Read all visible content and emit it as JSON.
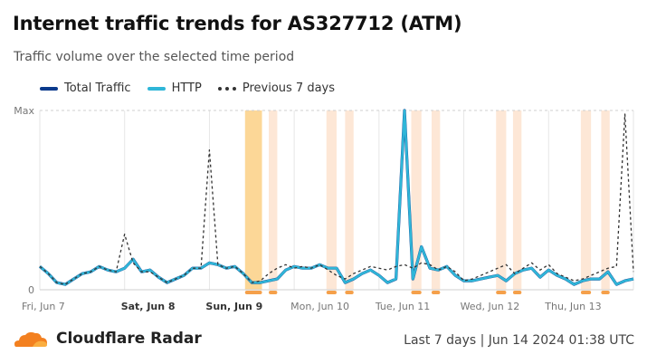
{
  "header": {
    "title": "Internet traffic trends for AS327712 (ATM)",
    "subtitle": "Traffic volume over the selected time period"
  },
  "legend": [
    {
      "label": "Total Traffic",
      "color": "#0a3a8c",
      "style": "solid"
    },
    {
      "label": "HTTP",
      "color": "#2fb6d8",
      "style": "solid"
    },
    {
      "label": "Previous 7 days",
      "color": "#333333",
      "style": "dotted"
    }
  ],
  "footer": {
    "brand": "Cloudflare Radar",
    "period": "Last 7 days | Jun 14 2024 01:38 UTC"
  },
  "chart_data": {
    "type": "line",
    "title": "Internet traffic trends for AS327712 (ATM)",
    "y_tick_labels": [
      "0",
      "Max"
    ],
    "ylim": [
      0,
      1
    ],
    "x_tick_labels": [
      {
        "label": "Fri, Jun 7",
        "bold": false
      },
      {
        "label": "Sat, Jun 8",
        "bold": true
      },
      {
        "label": "Sun, Jun 9",
        "bold": true
      },
      {
        "label": "Mon, Jun 10",
        "bold": false
      },
      {
        "label": "Tue, Jun 11",
        "bold": false
      },
      {
        "label": "Wed, Jun 12",
        "bold": false
      },
      {
        "label": "Thu, Jun 13",
        "bold": false
      }
    ],
    "grid": "vertical",
    "legend_position": "top-left",
    "x_days": [
      0,
      7
    ],
    "series": [
      {
        "name": "Total Traffic",
        "color": "#0a3a8c",
        "x": [
          0,
          0.1,
          0.2,
          0.3,
          0.4,
          0.5,
          0.6,
          0.7,
          0.8,
          0.9,
          1,
          1.1,
          1.2,
          1.3,
          1.4,
          1.5,
          1.6,
          1.7,
          1.8,
          1.9,
          2,
          2.1,
          2.2,
          2.3,
          2.4,
          2.5,
          2.6,
          2.7,
          2.8,
          2.9,
          3,
          3.1,
          3.2,
          3.3,
          3.4,
          3.5,
          3.6,
          3.7,
          3.8,
          3.9,
          4,
          4.1,
          4.2,
          4.3,
          4.4,
          4.5,
          4.6,
          4.7,
          4.8,
          4.9,
          5,
          5.1,
          5.2,
          5.3,
          5.4,
          5.5,
          5.6,
          5.7,
          5.8,
          5.9,
          6,
          6.1,
          6.2,
          6.3,
          6.4,
          6.5,
          6.6,
          6.7,
          6.8,
          6.9,
          7
        ],
        "y": [
          0.13,
          0.09,
          0.04,
          0.03,
          0.06,
          0.09,
          0.1,
          0.13,
          0.11,
          0.1,
          0.12,
          0.17,
          0.1,
          0.11,
          0.07,
          0.04,
          0.06,
          0.08,
          0.12,
          0.12,
          0.15,
          0.14,
          0.12,
          0.13,
          0.09,
          0.04,
          0.04,
          0.05,
          0.06,
          0.11,
          0.13,
          0.12,
          0.12,
          0.14,
          0.12,
          0.12,
          0.04,
          0.06,
          0.09,
          0.11,
          0.08,
          0.04,
          0.06,
          1.0,
          0.06,
          0.24,
          0.12,
          0.11,
          0.13,
          0.08,
          0.05,
          0.05,
          0.06,
          0.07,
          0.08,
          0.05,
          0.09,
          0.11,
          0.12,
          0.07,
          0.11,
          0.08,
          0.06,
          0.03,
          0.05,
          0.06,
          0.06,
          0.1,
          0.03,
          0.05,
          0.06
        ]
      },
      {
        "name": "HTTP",
        "color": "#2fb6d8",
        "x": [
          0,
          0.1,
          0.2,
          0.3,
          0.4,
          0.5,
          0.6,
          0.7,
          0.8,
          0.9,
          1,
          1.1,
          1.2,
          1.3,
          1.4,
          1.5,
          1.6,
          1.7,
          1.8,
          1.9,
          2,
          2.1,
          2.2,
          2.3,
          2.4,
          2.5,
          2.6,
          2.7,
          2.8,
          2.9,
          3,
          3.1,
          3.2,
          3.3,
          3.4,
          3.5,
          3.6,
          3.7,
          3.8,
          3.9,
          4,
          4.1,
          4.2,
          4.3,
          4.4,
          4.5,
          4.6,
          4.7,
          4.8,
          4.9,
          5,
          5.1,
          5.2,
          5.3,
          5.4,
          5.5,
          5.6,
          5.7,
          5.8,
          5.9,
          6,
          6.1,
          6.2,
          6.3,
          6.4,
          6.5,
          6.6,
          6.7,
          6.8,
          6.9,
          7
        ],
        "y": [
          0.13,
          0.09,
          0.04,
          0.03,
          0.06,
          0.09,
          0.1,
          0.13,
          0.11,
          0.1,
          0.12,
          0.17,
          0.1,
          0.11,
          0.07,
          0.04,
          0.06,
          0.08,
          0.12,
          0.12,
          0.15,
          0.14,
          0.12,
          0.13,
          0.09,
          0.04,
          0.04,
          0.05,
          0.06,
          0.11,
          0.13,
          0.12,
          0.12,
          0.14,
          0.12,
          0.12,
          0.04,
          0.06,
          0.09,
          0.11,
          0.08,
          0.04,
          0.06,
          1.0,
          0.06,
          0.24,
          0.12,
          0.11,
          0.13,
          0.08,
          0.05,
          0.05,
          0.06,
          0.07,
          0.08,
          0.05,
          0.09,
          0.11,
          0.12,
          0.07,
          0.11,
          0.08,
          0.06,
          0.03,
          0.05,
          0.06,
          0.06,
          0.1,
          0.03,
          0.05,
          0.06
        ]
      },
      {
        "name": "Previous 7 days",
        "color": "#333333",
        "x": [
          0,
          0.1,
          0.2,
          0.3,
          0.4,
          0.5,
          0.6,
          0.7,
          0.8,
          0.9,
          1,
          1.1,
          1.2,
          1.3,
          1.4,
          1.5,
          1.6,
          1.7,
          1.8,
          1.9,
          2,
          2.1,
          2.2,
          2.3,
          2.4,
          2.5,
          2.6,
          2.7,
          2.8,
          2.9,
          3,
          3.1,
          3.2,
          3.3,
          3.4,
          3.5,
          3.6,
          3.7,
          3.8,
          3.9,
          4,
          4.1,
          4.2,
          4.3,
          4.4,
          4.5,
          4.6,
          4.7,
          4.8,
          4.9,
          5,
          5.1,
          5.2,
          5.3,
          5.4,
          5.5,
          5.6,
          5.7,
          5.8,
          5.9,
          6,
          6.1,
          6.2,
          6.3,
          6.4,
          6.5,
          6.6,
          6.7,
          6.8,
          6.9,
          7
        ],
        "y": [
          0.13,
          0.09,
          0.04,
          0.03,
          0.06,
          0.09,
          0.1,
          0.13,
          0.11,
          0.1,
          0.31,
          0.15,
          0.1,
          0.1,
          0.07,
          0.04,
          0.06,
          0.08,
          0.12,
          0.12,
          0.78,
          0.14,
          0.12,
          0.13,
          0.09,
          0.04,
          0.05,
          0.09,
          0.12,
          0.14,
          0.12,
          0.13,
          0.12,
          0.14,
          0.11,
          0.08,
          0.06,
          0.09,
          0.11,
          0.13,
          0.12,
          0.11,
          0.13,
          0.14,
          0.12,
          0.15,
          0.14,
          0.11,
          0.13,
          0.1,
          0.05,
          0.06,
          0.08,
          0.1,
          0.12,
          0.14,
          0.09,
          0.12,
          0.15,
          0.11,
          0.14,
          0.09,
          0.07,
          0.05,
          0.06,
          0.08,
          0.1,
          0.12,
          0.13,
          0.98,
          0.1
        ]
      }
    ],
    "highlight_bands": [
      [
        2.42,
        2.62
      ],
      [
        2.7,
        2.8
      ],
      [
        3.38,
        3.5
      ],
      [
        3.6,
        3.7
      ],
      [
        4.38,
        4.5
      ],
      [
        4.62,
        4.72
      ],
      [
        5.38,
        5.5
      ],
      [
        5.58,
        5.68
      ],
      [
        6.38,
        6.5
      ],
      [
        6.62,
        6.72
      ]
    ]
  }
}
